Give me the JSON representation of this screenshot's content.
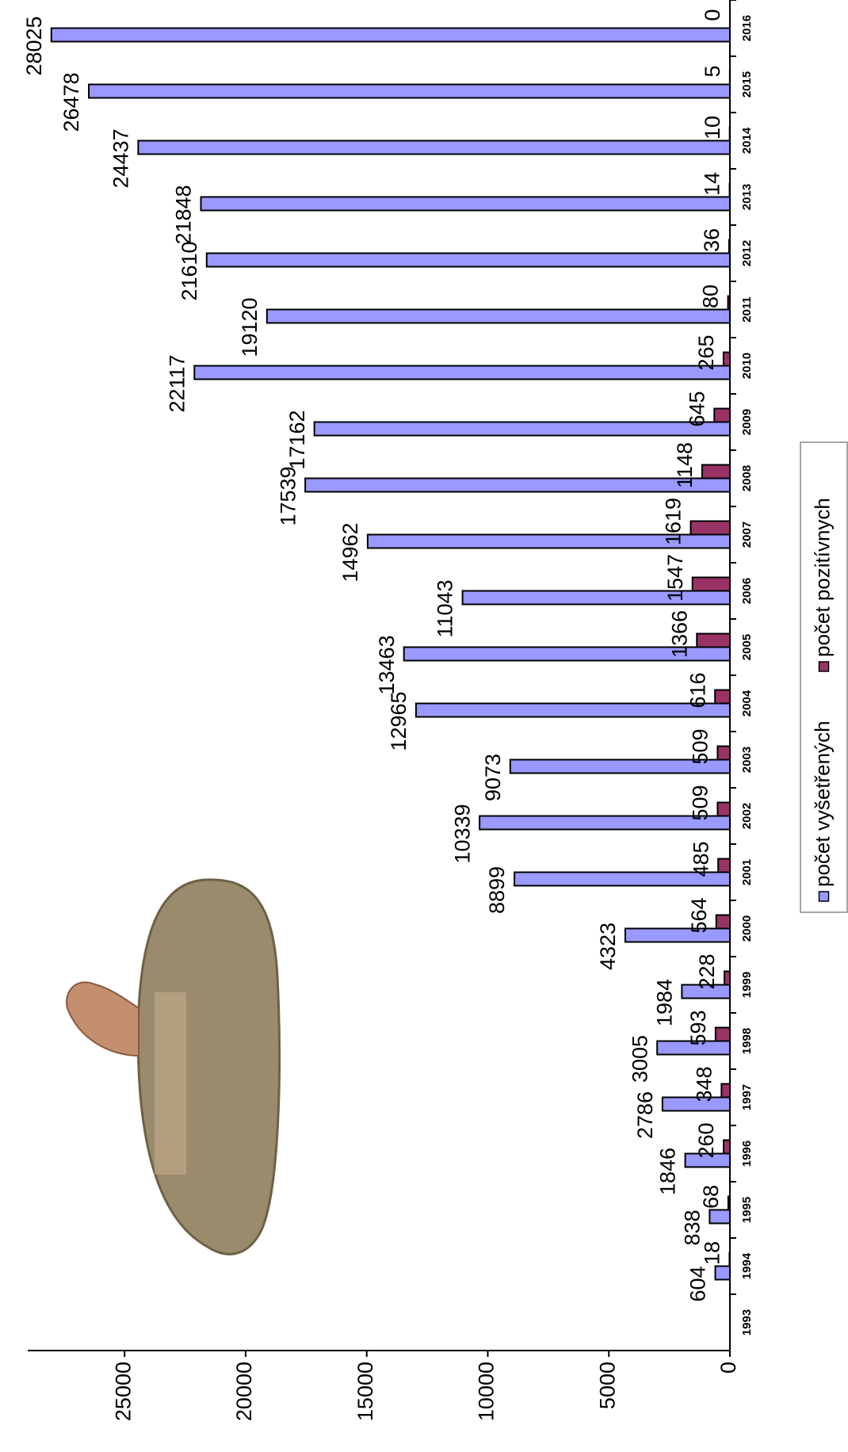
{
  "chart_data": {
    "type": "bar",
    "categories": [
      "1993",
      "1994",
      "1995",
      "1996",
      "1997",
      "1998",
      "1999",
      "2000",
      "2001",
      "2002",
      "2003",
      "2004",
      "2005",
      "2006",
      "2007",
      "2008",
      "2009",
      "2010",
      "2011",
      "2012",
      "2013",
      "2014",
      "2015",
      "2016"
    ],
    "series": [
      {
        "name": "počet vyšetřených",
        "color": "#9999ff",
        "values": [
          null,
          604,
          838,
          1846,
          2786,
          3005,
          1984,
          4323,
          8899,
          10339,
          9073,
          12965,
          13463,
          11043,
          14962,
          17539,
          17162,
          22117,
          19120,
          21610,
          21848,
          24437,
          26478,
          28025
        ]
      },
      {
        "name": "počet pozitívnych",
        "color": "#993366",
        "values": [
          null,
          18,
          68,
          260,
          348,
          593,
          228,
          564,
          485,
          509,
          509,
          616,
          1366,
          1547,
          1619,
          1148,
          645,
          265,
          80,
          36,
          14,
          10,
          5,
          0
        ]
      }
    ],
    "ylim": [
      0,
      29000
    ],
    "yticks": [
      0,
      5000,
      10000,
      15000,
      20000,
      25000
    ]
  }
}
